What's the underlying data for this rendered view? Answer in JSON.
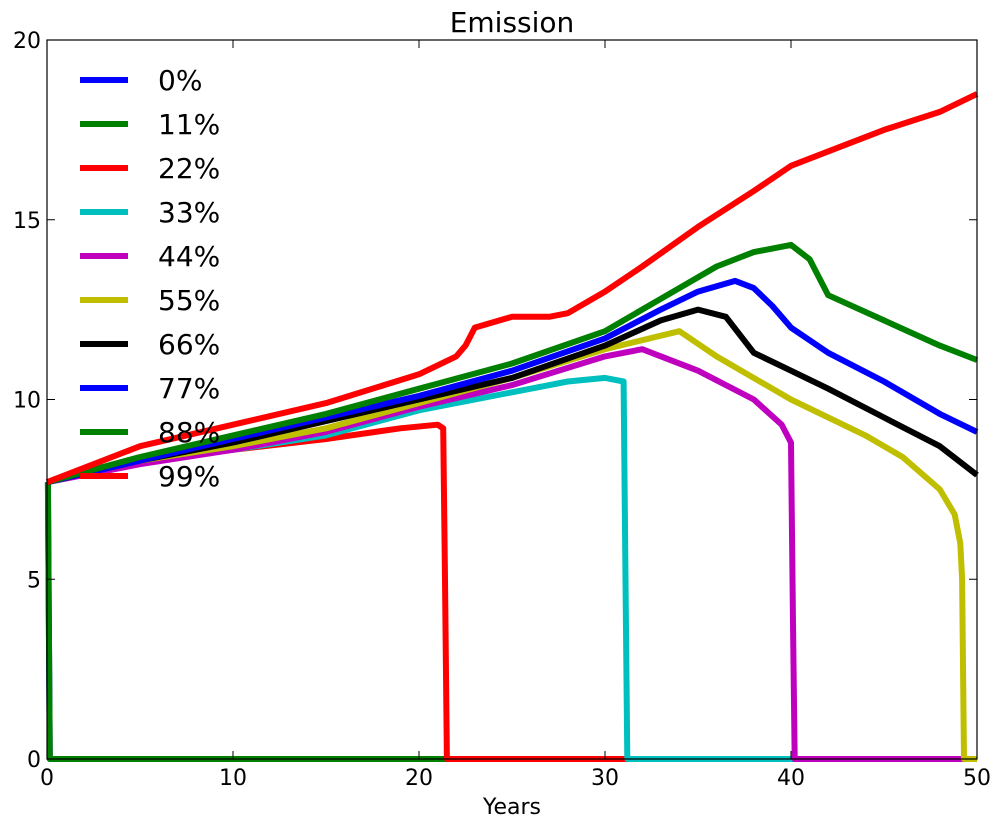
{
  "chart_data": {
    "type": "line",
    "title": "Emission",
    "xlabel": "Years",
    "ylabel": "",
    "xlim": [
      0,
      50
    ],
    "ylim": [
      0,
      20
    ],
    "xticks": [
      "0",
      "10",
      "20",
      "30",
      "40",
      "50"
    ],
    "yticks": [
      "0",
      "5",
      "10",
      "15",
      "20"
    ],
    "grid": false,
    "legend_position": "top-left",
    "series": [
      {
        "name": "0%",
        "color": "#0000ff",
        "x": [
          0,
          0.05,
          0.15,
          50
        ],
        "y": [
          7.7,
          7.7,
          0,
          0
        ]
      },
      {
        "name": "11%",
        "color": "#008000",
        "x": [
          0,
          0.05,
          0.15,
          50
        ],
        "y": [
          7.7,
          7.7,
          0,
          0
        ]
      },
      {
        "name": "22%",
        "color": "#ff0000",
        "x": [
          0,
          5,
          10,
          15,
          19,
          21,
          21.3,
          21.4,
          21.5,
          50
        ],
        "y": [
          7.7,
          8.3,
          8.6,
          8.9,
          9.2,
          9.3,
          9.2,
          5,
          0,
          0
        ]
      },
      {
        "name": "33%",
        "color": "#00bfbf",
        "x": [
          0,
          5,
          10,
          15,
          20,
          25,
          28,
          30,
          31,
          31.1,
          31.2,
          50
        ],
        "y": [
          7.7,
          8.3,
          8.6,
          9.0,
          9.7,
          10.2,
          10.5,
          10.6,
          10.5,
          5,
          0,
          0
        ]
      },
      {
        "name": "44%",
        "color": "#bf00bf",
        "x": [
          0,
          5,
          10,
          15,
          20,
          25,
          30,
          32,
          35,
          38,
          39.5,
          40,
          40.1,
          40.2,
          50
        ],
        "y": [
          7.7,
          8.2,
          8.6,
          9.1,
          9.8,
          10.4,
          11.2,
          11.4,
          10.8,
          10.0,
          9.3,
          8.8,
          4,
          0,
          0
        ]
      },
      {
        "name": "55%",
        "color": "#bfbf00",
        "x": [
          0,
          5,
          10,
          15,
          20,
          25,
          30,
          34,
          36,
          40,
          44,
          46,
          48,
          48.8,
          49.1,
          49.2,
          49.3,
          50
        ],
        "y": [
          7.7,
          8.3,
          8.7,
          9.2,
          9.9,
          10.6,
          11.4,
          11.9,
          11.2,
          10.0,
          9.0,
          8.4,
          7.5,
          6.8,
          6.0,
          5.0,
          0,
          0
        ]
      },
      {
        "name": "66%",
        "color": "#000000",
        "x": [
          0,
          5,
          10,
          15,
          20,
          25,
          30,
          33,
          35,
          36.5,
          38,
          40,
          42,
          45,
          48,
          50
        ],
        "y": [
          7.7,
          8.3,
          8.8,
          9.4,
          10.0,
          10.6,
          11.5,
          12.2,
          12.5,
          12.3,
          11.3,
          10.8,
          10.3,
          9.5,
          8.7,
          7.9
        ]
      },
      {
        "name": "77%",
        "color": "#0000ff",
        "x": [
          0,
          5,
          10,
          15,
          20,
          25,
          30,
          33,
          35,
          37,
          38,
          39,
          40,
          42,
          45,
          48,
          50
        ],
        "y": [
          7.7,
          8.3,
          8.9,
          9.5,
          10.1,
          10.8,
          11.7,
          12.5,
          13.0,
          13.3,
          13.1,
          12.6,
          12.0,
          11.3,
          10.5,
          9.6,
          9.1
        ]
      },
      {
        "name": "88%",
        "color": "#008000",
        "x": [
          0,
          5,
          10,
          15,
          20,
          25,
          30,
          33,
          36,
          38,
          40,
          41,
          42,
          45,
          48,
          50
        ],
        "y": [
          7.7,
          8.4,
          9.0,
          9.6,
          10.3,
          11.0,
          11.9,
          12.8,
          13.7,
          14.1,
          14.3,
          13.9,
          12.9,
          12.2,
          11.5,
          11.1
        ]
      },
      {
        "name": "99%",
        "color": "#ff0000",
        "x": [
          0,
          5,
          10,
          15,
          20,
          22,
          22.5,
          23,
          25,
          27,
          28,
          30,
          32,
          35,
          38,
          40,
          42,
          45,
          48,
          50
        ],
        "y": [
          7.7,
          8.7,
          9.3,
          9.9,
          10.7,
          11.2,
          11.5,
          12.0,
          12.3,
          12.3,
          12.4,
          13.0,
          13.7,
          14.8,
          15.8,
          16.5,
          16.9,
          17.5,
          18.0,
          18.5
        ]
      }
    ]
  }
}
